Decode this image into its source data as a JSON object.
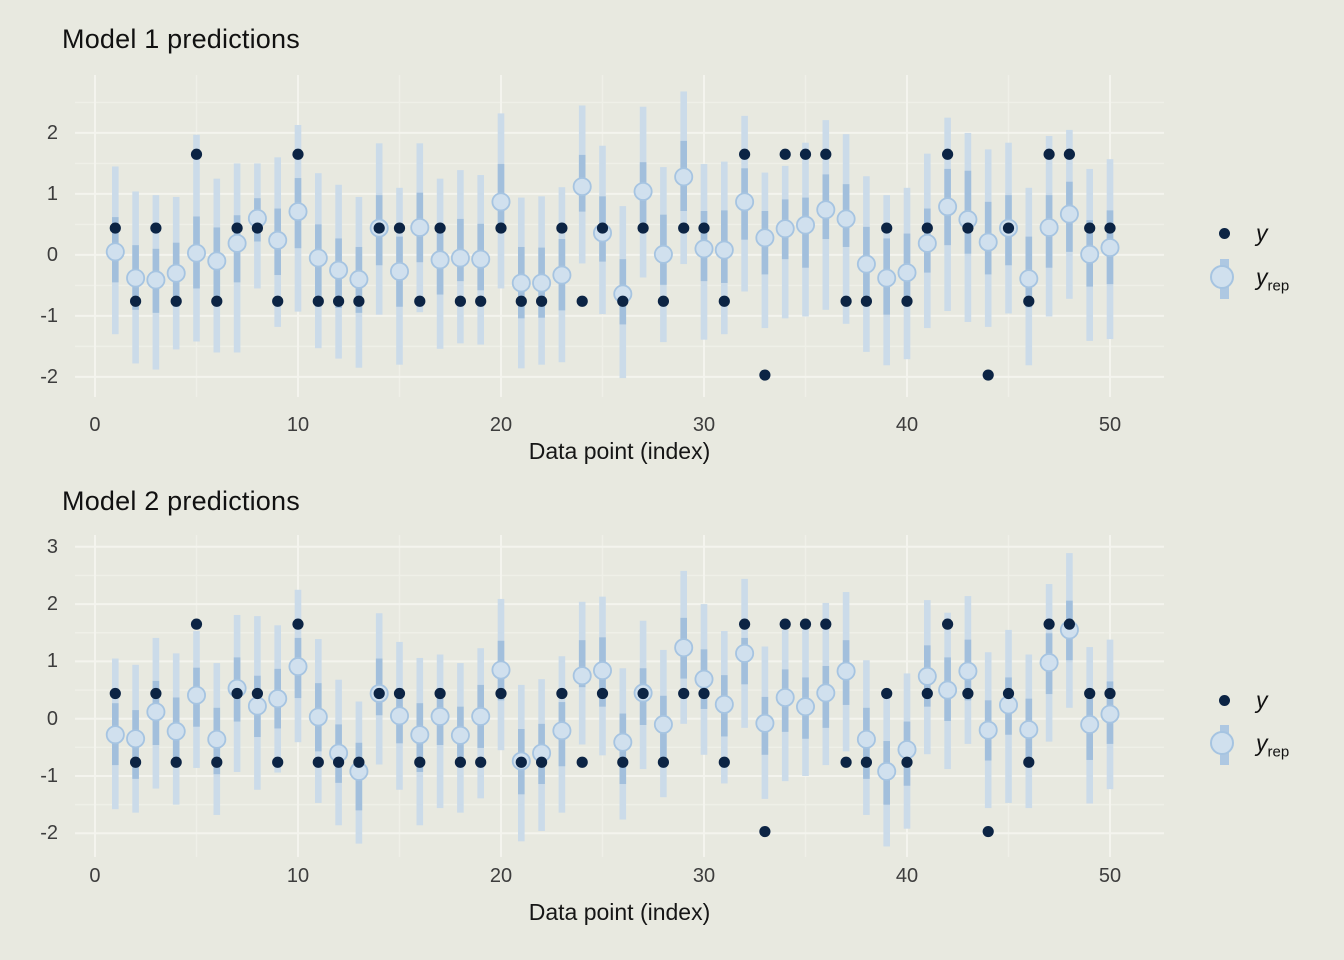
{
  "legend": {
    "y_label": "y",
    "yrep_base": "y",
    "yrep_sub": "rep"
  },
  "style": {
    "background": "#e8e9e0",
    "grid_major": "#f4f4ee",
    "grid_minor": "#eff0e8",
    "outer_interval": "#cbdbe9",
    "inner_interval": "#a2bfdc",
    "median_fill": "#d0e0ee",
    "median_stroke": "#a6c4e1",
    "observed_point": "#0c2444",
    "tick_text": "#3d3d3d",
    "title_text": "#111111"
  },
  "chart_data": [
    {
      "type": "intervals",
      "title": "Model 1 predictions",
      "xlabel": "Data point (index)",
      "legend_entries": [
        "y",
        "y_rep"
      ],
      "x_ticks": [
        0,
        10,
        20,
        30,
        40,
        50
      ],
      "x_minor": [
        5,
        15,
        25,
        35,
        45
      ],
      "y_ticks": [
        -2,
        -1,
        0,
        1,
        2
      ],
      "y_minor": [
        -1.5,
        -0.5,
        0.5,
        1.5,
        2.5
      ],
      "xlim": [
        -0.985,
        52.66
      ],
      "ylim": [
        -2.33,
        2.95
      ],
      "x_start": 1,
      "point_format": [
        "y",
        "yrep_median",
        "inner_lo",
        "inner_hi",
        "outer_lo",
        "outer_hi"
      ],
      "points": [
        [
          0.44,
          0.05,
          -0.45,
          0.62,
          -1.3,
          1.45
        ],
        [
          -0.76,
          -0.38,
          -0.9,
          0.16,
          -1.78,
          1.04
        ],
        [
          0.44,
          -0.41,
          -0.95,
          0.1,
          -1.88,
          0.98
        ],
        [
          -0.76,
          -0.3,
          -0.85,
          0.2,
          -1.55,
          0.95
        ],
        [
          1.65,
          0.03,
          -0.55,
          0.63,
          -1.42,
          1.97
        ],
        [
          -0.76,
          -0.1,
          -0.7,
          0.45,
          -1.6,
          1.25
        ],
        [
          0.44,
          0.19,
          -0.45,
          0.65,
          -1.6,
          1.5
        ],
        [
          0.44,
          0.6,
          0.22,
          0.93,
          -0.55,
          1.5
        ],
        [
          -0.76,
          0.24,
          -0.33,
          0.76,
          -1.18,
          1.6
        ],
        [
          1.65,
          0.71,
          0.11,
          1.26,
          -0.93,
          2.13
        ],
        [
          -0.76,
          -0.05,
          -0.85,
          0.5,
          -1.53,
          1.34
        ],
        [
          -0.76,
          -0.25,
          -0.87,
          0.27,
          -1.7,
          1.15
        ],
        [
          -0.76,
          -0.4,
          -0.95,
          0.13,
          -1.85,
          0.95
        ],
        [
          0.44,
          0.44,
          -0.17,
          0.98,
          -0.98,
          1.83
        ],
        [
          0.44,
          -0.27,
          -0.85,
          0.3,
          -1.8,
          1.1
        ],
        [
          -0.76,
          0.45,
          -0.12,
          1.02,
          -0.94,
          1.83
        ],
        [
          0.44,
          -0.08,
          -0.65,
          0.51,
          -1.54,
          1.25
        ],
        [
          -0.76,
          -0.05,
          -0.43,
          0.59,
          -1.45,
          1.39
        ],
        [
          -0.76,
          -0.07,
          -0.58,
          0.51,
          -1.47,
          1.31
        ],
        [
          0.44,
          0.87,
          0.38,
          1.49,
          -0.55,
          2.32
        ],
        [
          -0.76,
          -0.46,
          -1.04,
          0.13,
          -1.86,
          0.94
        ],
        [
          -0.76,
          -0.46,
          -1.03,
          0.12,
          -1.8,
          0.96
        ],
        [
          0.44,
          -0.33,
          -0.91,
          0.26,
          -1.76,
          1.11
        ],
        [
          -0.76,
          1.12,
          0.71,
          1.64,
          -0.14,
          2.45
        ],
        [
          0.44,
          0.36,
          -0.11,
          0.96,
          -0.97,
          1.79
        ],
        [
          -0.76,
          -0.64,
          -1.14,
          -0.07,
          -2.02,
          0.8
        ],
        [
          0.44,
          1.04,
          0.53,
          1.52,
          -0.37,
          2.43
        ],
        [
          -0.76,
          0.01,
          -0.49,
          0.66,
          -1.43,
          1.44
        ],
        [
          0.44,
          1.28,
          0.72,
          1.87,
          -0.15,
          2.68
        ],
        [
          0.44,
          0.1,
          -0.43,
          0.72,
          -1.39,
          1.49
        ],
        [
          -0.76,
          0.08,
          -0.46,
          0.73,
          -1.3,
          1.53
        ],
        [
          1.65,
          0.87,
          0.25,
          1.42,
          -0.6,
          2.28
        ],
        [
          -1.97,
          0.28,
          -0.32,
          0.72,
          -1.2,
          1.35
        ],
        [
          1.65,
          0.43,
          -0.07,
          0.91,
          -1.04,
          1.46
        ],
        [
          1.65,
          0.49,
          -0.21,
          0.94,
          -1.01,
          1.84
        ],
        [
          1.65,
          0.74,
          0.26,
          1.32,
          -0.9,
          2.21
        ],
        [
          -0.76,
          0.59,
          0.13,
          1.16,
          -1.13,
          1.98
        ],
        [
          -0.76,
          -0.15,
          -0.72,
          0.46,
          -1.59,
          1.29
        ],
        [
          0.44,
          -0.38,
          -0.98,
          0.27,
          -1.81,
          0.98
        ],
        [
          -0.76,
          -0.29,
          -0.83,
          0.35,
          -1.71,
          1.1
        ],
        [
          0.44,
          0.19,
          -0.29,
          0.76,
          -1.2,
          1.66
        ],
        [
          1.65,
          0.79,
          0.16,
          1.41,
          -0.92,
          2.25
        ],
        [
          0.44,
          0.58,
          0.02,
          1.38,
          -1.1,
          2.0
        ],
        [
          -1.97,
          0.21,
          -0.32,
          0.87,
          -1.18,
          1.73
        ],
        [
          0.44,
          0.44,
          -0.17,
          0.98,
          -0.96,
          1.84
        ],
        [
          -0.76,
          -0.39,
          -0.86,
          0.3,
          -1.81,
          1.1
        ],
        [
          1.65,
          0.45,
          -0.21,
          0.98,
          -1.01,
          1.95
        ],
        [
          1.65,
          0.67,
          0.05,
          1.2,
          -0.72,
          2.05
        ],
        [
          0.44,
          0.01,
          -0.52,
          0.57,
          -1.41,
          1.41
        ],
        [
          0.44,
          0.12,
          -0.48,
          0.73,
          -1.38,
          1.57
        ]
      ]
    },
    {
      "type": "intervals",
      "title": "Model 2 predictions",
      "xlabel": "Data point (index)",
      "legend_entries": [
        "y",
        "y_rep"
      ],
      "x_ticks": [
        0,
        10,
        20,
        30,
        40,
        50
      ],
      "x_minor": [
        5,
        15,
        25,
        35,
        45
      ],
      "y_ticks": [
        -2,
        -1,
        0,
        1,
        2,
        3
      ],
      "y_minor": [
        -1.5,
        -0.5,
        0.5,
        1.5,
        2.5
      ],
      "xlim": [
        -0.985,
        52.66
      ],
      "ylim": [
        -2.414,
        3.206
      ],
      "x_start": 1,
      "point_format": [
        "y",
        "yrep_median",
        "inner_lo",
        "inner_hi",
        "outer_lo",
        "outer_hi"
      ],
      "points": [
        [
          0.44,
          -0.28,
          -0.81,
          0.27,
          -1.58,
          1.05
        ],
        [
          -0.76,
          -0.35,
          -1.05,
          0.15,
          -1.64,
          0.94
        ],
        [
          0.44,
          0.12,
          -0.46,
          0.66,
          -1.22,
          1.41
        ],
        [
          -0.76,
          -0.22,
          -0.76,
          0.37,
          -1.5,
          1.14
        ],
        [
          1.65,
          0.41,
          -0.14,
          0.89,
          -0.86,
          1.53
        ],
        [
          -0.76,
          -0.36,
          -0.97,
          0.19,
          -1.68,
          0.97
        ],
        [
          0.44,
          0.53,
          -0.05,
          1.07,
          -0.93,
          1.81
        ],
        [
          0.44,
          0.22,
          -0.32,
          0.75,
          -1.24,
          1.79
        ],
        [
          -0.76,
          0.35,
          -0.17,
          0.87,
          -0.94,
          1.63
        ],
        [
          1.65,
          0.91,
          0.36,
          1.41,
          -0.41,
          2.25
        ],
        [
          -0.76,
          0.03,
          -0.57,
          0.62,
          -1.47,
          1.39
        ],
        [
          -0.76,
          -0.6,
          -1.12,
          -0.1,
          -1.86,
          0.68
        ],
        [
          -0.76,
          -0.92,
          -1.6,
          -0.42,
          -2.18,
          0.3
        ],
        [
          0.44,
          0.44,
          0.06,
          1.05,
          -0.8,
          1.84
        ],
        [
          0.44,
          0.05,
          -0.43,
          0.53,
          -1.24,
          1.34
        ],
        [
          -0.76,
          -0.28,
          -0.93,
          0.27,
          -1.86,
          1.06
        ],
        [
          0.44,
          0.04,
          -0.46,
          0.53,
          -1.56,
          1.12
        ],
        [
          -0.76,
          -0.29,
          -0.81,
          0.21,
          -1.64,
          0.97
        ],
        [
          -0.76,
          0.04,
          -0.51,
          0.59,
          -1.39,
          1.23
        ],
        [
          0.44,
          0.85,
          0.32,
          1.36,
          -0.55,
          2.09
        ],
        [
          -0.76,
          -0.74,
          -1.32,
          -0.18,
          -2.14,
          0.59
        ],
        [
          -0.76,
          -0.6,
          -1.14,
          -0.09,
          -1.96,
          0.69
        ],
        [
          0.44,
          -0.21,
          -0.83,
          0.29,
          -1.64,
          1.09
        ],
        [
          -0.76,
          0.75,
          0.55,
          1.37,
          -0.45,
          2.04
        ],
        [
          0.44,
          0.84,
          0.21,
          1.42,
          -0.64,
          2.13
        ],
        [
          -0.76,
          -0.41,
          -1.14,
          0.09,
          -1.76,
          0.88
        ],
        [
          0.44,
          0.45,
          -0.11,
          0.88,
          -0.88,
          1.71
        ],
        [
          -0.76,
          -0.1,
          -0.69,
          0.4,
          -1.37,
          1.2
        ],
        [
          0.44,
          1.24,
          0.7,
          1.76,
          -0.09,
          2.58
        ],
        [
          0.44,
          0.69,
          0.17,
          1.21,
          -0.63,
          2.0
        ],
        [
          -0.76,
          0.25,
          -0.31,
          0.76,
          -1.13,
          1.53
        ],
        [
          1.65,
          1.14,
          0.6,
          1.41,
          -0.16,
          2.44
        ],
        [
          -1.97,
          -0.08,
          -0.63,
          0.38,
          -1.4,
          1.26
        ],
        [
          1.65,
          0.37,
          -0.23,
          0.86,
          -1.09,
          1.55
        ],
        [
          1.65,
          0.21,
          -0.35,
          0.72,
          -1.0,
          1.72
        ],
        [
          1.65,
          0.45,
          -0.16,
          0.92,
          -0.81,
          2.02
        ],
        [
          -0.76,
          0.83,
          0.24,
          1.37,
          -0.57,
          2.21
        ],
        [
          -0.76,
          -0.36,
          -1.05,
          0.19,
          -1.68,
          1.02
        ],
        [
          0.44,
          -0.92,
          -1.5,
          -0.39,
          -2.23,
          0.43
        ],
        [
          -0.76,
          -0.54,
          -1.17,
          -0.05,
          -1.92,
          0.79
        ],
        [
          0.44,
          0.74,
          0.21,
          1.28,
          -0.62,
          2.07
        ],
        [
          1.65,
          0.5,
          -0.04,
          1.07,
          -0.88,
          1.85
        ],
        [
          0.44,
          0.83,
          0.32,
          1.38,
          -0.44,
          2.14
        ],
        [
          -1.97,
          -0.2,
          -0.73,
          0.32,
          -1.56,
          1.16
        ],
        [
          0.44,
          0.24,
          -0.28,
          0.72,
          -1.47,
          1.55
        ],
        [
          -0.76,
          -0.19,
          -0.69,
          0.35,
          -1.56,
          1.12
        ],
        [
          1.65,
          0.98,
          0.43,
          1.49,
          -0.4,
          2.35
        ],
        [
          1.65,
          1.55,
          1.02,
          2.06,
          0.19,
          2.89
        ],
        [
          0.44,
          -0.1,
          -0.72,
          0.35,
          -1.48,
          1.25
        ],
        [
          0.44,
          0.08,
          -0.44,
          0.65,
          -1.23,
          1.38
        ]
      ]
    }
  ]
}
